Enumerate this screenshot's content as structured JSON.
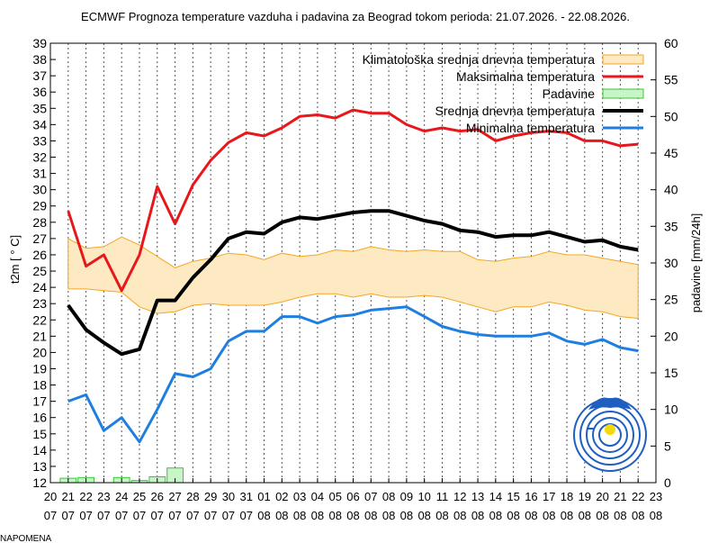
{
  "note": "NAPOMENA",
  "chart_data": {
    "type": "line",
    "title": "ECMWF Prognoza temperature vazduha i padavina za Beograd tokom perioda: 21.07.2026. - 22.08.2026.",
    "ylabel": "t2m [ ° C]",
    "y2label": "padavine [mm/24h]",
    "ylim": [
      12,
      39
    ],
    "y2lim": [
      0,
      60
    ],
    "yticks": [
      "12",
      "13",
      "14",
      "15",
      "16",
      "17",
      "18",
      "19",
      "20",
      "21",
      "22",
      "23",
      "24",
      "25",
      "26",
      "27",
      "28",
      "29",
      "30",
      "31",
      "32",
      "33",
      "34",
      "35",
      "36",
      "37",
      "38",
      "39"
    ],
    "y2ticks": [
      "0",
      "5",
      "10",
      "15",
      "20",
      "25",
      "30",
      "35",
      "40",
      "45",
      "50",
      "55",
      "60"
    ],
    "xtick_days": [
      "20",
      "21",
      "22",
      "23",
      "24",
      "25",
      "26",
      "27",
      "28",
      "29",
      "30",
      "31",
      "01",
      "02",
      "03",
      "04",
      "05",
      "06",
      "07",
      "08",
      "09",
      "10",
      "11",
      "12",
      "13",
      "14",
      "15",
      "16",
      "17",
      "18",
      "19",
      "20",
      "21",
      "22",
      "23"
    ],
    "xtick_months": [
      "07",
      "07",
      "07",
      "07",
      "07",
      "07",
      "07",
      "07",
      "07",
      "07",
      "07",
      "07",
      "08",
      "08",
      "08",
      "08",
      "08",
      "08",
      "08",
      "08",
      "08",
      "08",
      "08",
      "08",
      "08",
      "08",
      "08",
      "08",
      "08",
      "08",
      "08",
      "08",
      "08",
      "08",
      "08"
    ],
    "grid": "vertical dotted",
    "legend_position": "top-right",
    "x": [
      "21.07",
      "22.07",
      "23.07",
      "24.07",
      "25.07",
      "26.07",
      "27.07",
      "28.07",
      "29.07",
      "30.07",
      "31.07",
      "01.08",
      "02.08",
      "03.08",
      "04.08",
      "05.08",
      "06.08",
      "07.08",
      "08.08",
      "09.08",
      "10.08",
      "11.08",
      "12.08",
      "13.08",
      "14.08",
      "15.08",
      "16.08",
      "17.08",
      "18.08",
      "19.08",
      "20.08",
      "21.08",
      "22.08"
    ],
    "series": [
      {
        "name": "Klimatološka srednja dnevna temperatura",
        "type": "band",
        "color": "#f5a623",
        "low": [
          23.9,
          23.9,
          23.8,
          23.7,
          22.8,
          22.4,
          22.5,
          22.9,
          23.0,
          22.9,
          22.9,
          22.9,
          23.1,
          23.4,
          23.6,
          23.6,
          23.4,
          23.6,
          23.4,
          23.4,
          23.5,
          23.4,
          23.1,
          22.8,
          22.5,
          22.8,
          22.8,
          23.1,
          22.9,
          22.6,
          22.5,
          22.2,
          22.1
        ],
        "high": [
          27.0,
          26.4,
          26.5,
          27.1,
          26.6,
          25.9,
          25.2,
          25.6,
          25.8,
          26.1,
          26.0,
          25.7,
          26.1,
          25.9,
          26.0,
          26.3,
          26.2,
          26.5,
          26.3,
          26.2,
          26.3,
          26.2,
          26.2,
          25.7,
          25.6,
          25.8,
          25.9,
          26.2,
          26.0,
          26.0,
          25.8,
          25.6,
          25.4
        ]
      },
      {
        "name": "Maksimalna temperatura",
        "type": "line",
        "color": "#e8171b",
        "values": [
          28.7,
          25.3,
          26.0,
          23.8,
          26.0,
          30.2,
          27.9,
          30.3,
          31.8,
          32.9,
          33.5,
          33.3,
          33.8,
          34.5,
          34.6,
          34.4,
          34.9,
          34.7,
          34.7,
          34.0,
          33.6,
          33.8,
          33.6,
          33.7,
          33.0,
          33.3,
          33.5,
          33.6,
          33.5,
          33.0,
          33.0,
          32.7,
          32.8
        ]
      },
      {
        "name": "Padavine",
        "type": "bar",
        "axis": "right",
        "color": "#7de07d",
        "values": [
          0.6,
          0.7,
          0.0,
          0.7,
          0.3,
          0.8,
          2.0,
          0,
          0,
          0,
          0,
          0,
          0,
          0,
          0,
          0,
          0,
          0,
          0,
          0,
          0,
          0,
          0,
          0,
          0,
          0,
          0,
          0,
          0,
          0,
          0,
          0,
          0
        ]
      },
      {
        "name": "Srednja dnevna temperatura",
        "type": "line",
        "color": "#000000",
        "values": [
          22.9,
          21.4,
          20.6,
          19.9,
          20.2,
          23.2,
          23.2,
          24.6,
          25.7,
          27.0,
          27.4,
          27.3,
          28.0,
          28.3,
          28.2,
          28.4,
          28.6,
          28.7,
          28.7,
          28.4,
          28.1,
          27.9,
          27.5,
          27.4,
          27.1,
          27.2,
          27.2,
          27.4,
          27.1,
          26.8,
          26.9,
          26.5,
          26.3
        ]
      },
      {
        "name": "Minimalna temperatura",
        "type": "line",
        "color": "#1f7fe0",
        "values": [
          17.0,
          17.4,
          15.2,
          16.0,
          14.5,
          16.5,
          18.7,
          18.5,
          19.0,
          20.7,
          21.3,
          21.3,
          22.2,
          22.2,
          21.8,
          22.2,
          22.3,
          22.6,
          22.7,
          22.8,
          22.2,
          21.6,
          21.3,
          21.1,
          21.0,
          21.0,
          21.0,
          21.2,
          20.7,
          20.5,
          20.8,
          20.3,
          20.1
        ]
      }
    ]
  }
}
